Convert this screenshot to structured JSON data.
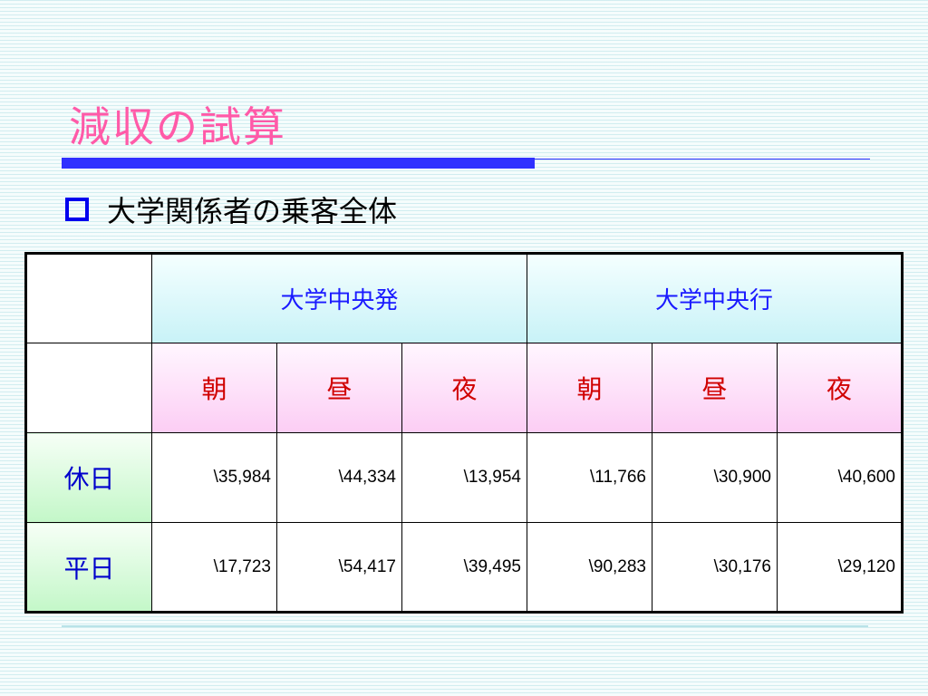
{
  "slide": {
    "title": "減収の試算",
    "bullet": "大学関係者の乗客全体"
  },
  "table": {
    "groups": [
      "大学中央発",
      "大学中央行"
    ],
    "periods": [
      "朝",
      "昼",
      "夜",
      "朝",
      "昼",
      "夜"
    ],
    "rows": [
      {
        "label": "休日",
        "values": [
          "\\35,984",
          "\\44,334",
          "\\13,954",
          "\\11,766",
          "\\30,900",
          "\\40,600"
        ]
      },
      {
        "label": "平日",
        "values": [
          "\\17,723",
          "\\54,417",
          "\\39,495",
          "\\90,283",
          "\\30,176",
          "\\29,120"
        ]
      }
    ]
  },
  "colors": {
    "title": "#ff5aa8",
    "accent_rule": "#3030ff",
    "bullet": "#0000ee",
    "group_header_text": "#1a1aff",
    "period_text": "#d00000",
    "row_label_text": "#0000cc"
  }
}
